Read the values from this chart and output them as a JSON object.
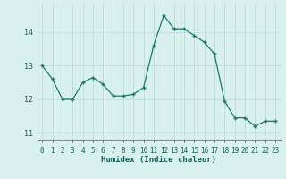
{
  "x": [
    0,
    1,
    2,
    3,
    4,
    5,
    6,
    7,
    8,
    9,
    10,
    11,
    12,
    13,
    14,
    15,
    16,
    17,
    18,
    19,
    20,
    21,
    22,
    23
  ],
  "y": [
    13.0,
    12.6,
    12.0,
    12.0,
    12.5,
    12.65,
    12.45,
    12.1,
    12.1,
    12.15,
    12.35,
    13.6,
    14.5,
    14.1,
    14.1,
    13.9,
    13.7,
    13.35,
    11.95,
    11.45,
    11.45,
    11.2,
    11.35,
    11.35
  ],
  "line_color": "#1a7a6e",
  "marker": "+",
  "markersize": 3.5,
  "linewidth": 0.9,
  "xlabel": "Humidex (Indice chaleur)",
  "xlabel_fontsize": 7,
  "xlabel_color": "#1a5f58",
  "background_color": "#d8f0ee",
  "grid_color": "#c0dcd8",
  "tick_color": "#1a5f58",
  "axis_color": "#888888",
  "ylim": [
    10.8,
    14.85
  ],
  "xlim": [
    -0.5,
    23.5
  ],
  "yticks": [
    11,
    12,
    13,
    14
  ],
  "xticks": [
    0,
    1,
    2,
    3,
    4,
    5,
    6,
    7,
    8,
    9,
    10,
    11,
    12,
    13,
    14,
    15,
    16,
    17,
    18,
    19,
    20,
    21,
    22,
    23
  ],
  "tick_fontsize": 5.5,
  "xlabel_fontsize_val": 6.5
}
